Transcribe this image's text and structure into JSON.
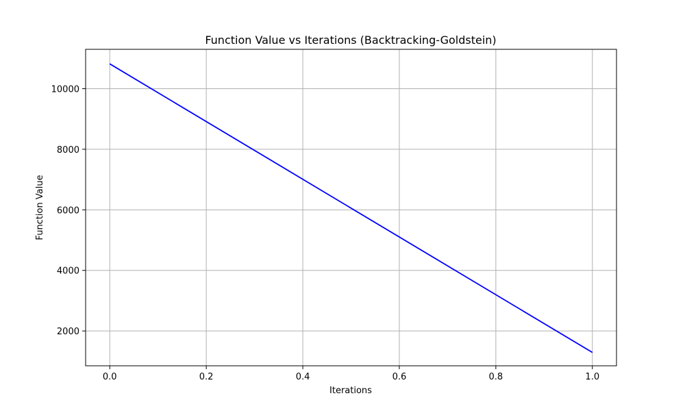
{
  "chart_data": {
    "type": "line",
    "title": "Function Value vs Iterations (Backtracking-Goldstein)",
    "xlabel": "Iterations",
    "ylabel": "Function Value",
    "xlim": [
      -0.05,
      1.05
    ],
    "ylim": [
      850,
      11300
    ],
    "xticks": [
      0.0,
      0.2,
      0.4,
      0.6,
      0.8,
      1.0
    ],
    "xtick_labels": [
      "0.0",
      "0.2",
      "0.4",
      "0.6",
      "0.8",
      "1.0"
    ],
    "yticks": [
      2000,
      4000,
      6000,
      8000,
      10000
    ],
    "ytick_labels": [
      "2000",
      "4000",
      "6000",
      "8000",
      "10000"
    ],
    "grid": true,
    "series": [
      {
        "color": "#0000ff",
        "x": [
          0,
          1
        ],
        "y": [
          10820,
          1290
        ]
      }
    ]
  }
}
